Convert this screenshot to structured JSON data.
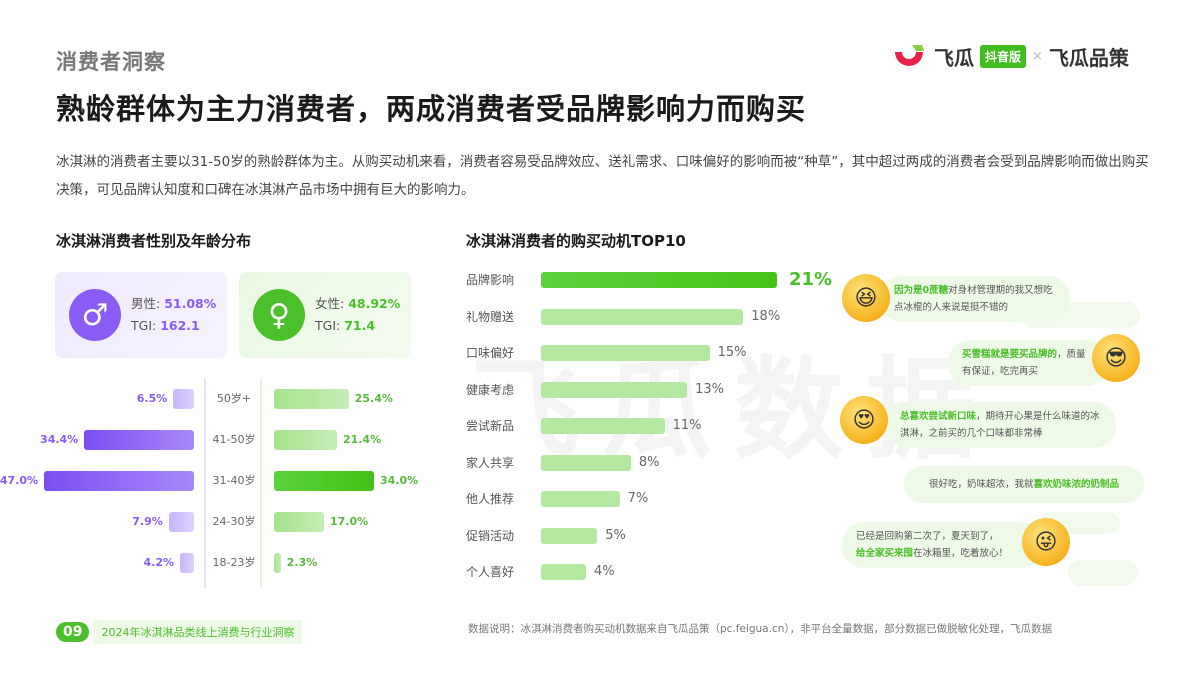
{
  "header": {
    "section_label": "消费者洞察",
    "main_title": "熟龄群体为主力消费者，两成消费者受品牌影响力而购买",
    "logo": {
      "brand": "飞瓜",
      "badge": "抖音版",
      "separator": "×",
      "partner": "飞瓜品策"
    }
  },
  "description": "冰淇淋的消费者主要以31-50岁的熟龄群体为主。从购买动机来看，消费者容易受品牌效应、送礼需求、口味偏好的影响而被“种草”，其中超过两成的消费者会受到品牌影响而做出购买决策，可见品牌认知度和口碑在冰淇淋产品市场中拥有巨大的影响力。",
  "gender_section": {
    "title": "冰淇淋消费者性别及年龄分布",
    "male": {
      "label": "男性:",
      "value": "51.08%",
      "tgi_label": "TGI:",
      "tgi": "162.1",
      "icon": "male-symbol-icon"
    },
    "female": {
      "label": "女性:",
      "value": "48.92%",
      "tgi_label": "TGI:",
      "tgi": "71.4",
      "icon": "female-symbol-icon"
    }
  },
  "motive_section": {
    "title": "冰淇淋消费者的购买动机TOP10"
  },
  "watermark": "飞瓜数据",
  "comments": [
    {
      "highlight": "因为是0蔗糖",
      "text": "对身材管理期的我又想吃点冰棍的人来说是挺不错的",
      "emoji": "laughing-emoji-icon"
    },
    {
      "highlight": "买雪糕就是要买品牌的",
      "text": "，质量有保证，吃完再买",
      "emoji": "sunglasses-emoji-icon"
    },
    {
      "highlight": "总喜欢尝试新口味",
      "text": "，期待开心果是什么味道的冰淇淋，之前买的几个口味都非常棒",
      "emoji": "heart-eyes-emoji-icon"
    },
    {
      "prefix": "很好吃，奶味超浓，我就",
      "highlight": "喜欢奶味浓的奶制品"
    },
    {
      "prefix": "已经是回购第二次了，夏天到了，",
      "highlight": "给全家买来囤",
      "text": "在冰箱里，吃着放心！",
      "emoji": "winking-tongue-emoji-icon"
    }
  ],
  "footer": {
    "page_number": "09",
    "report_title": "2024年冰淇淋品类线上消费与行业洞察",
    "note": "数据说明：冰淇淋消费者购买动机数据来自飞瓜品策（pc.feigua.cn），非平台全量数据，部分数据已做脱敏化处理，飞瓜数据"
  },
  "colors": {
    "male": "#8a5cf5",
    "female": "#4cc02a",
    "bar_light_green": "#b3e8a0"
  },
  "chart_data": [
    {
      "type": "bar",
      "title": "冰淇淋消费者性别及年龄分布",
      "orientation": "horizontal-butterfly",
      "categories": [
        "50岁+",
        "41-50岁",
        "31-40岁",
        "24-30岁",
        "18-23岁"
      ],
      "series": [
        {
          "name": "男性",
          "values": [
            6.5,
            34.4,
            47.0,
            7.9,
            4.2
          ],
          "labels": [
            "6.5%",
            "34.4%",
            "47.0%",
            "7.9%",
            "4.2%"
          ]
        },
        {
          "name": "女性",
          "values": [
            25.4,
            21.4,
            34.0,
            17.0,
            2.3
          ],
          "labels": [
            "25.4%",
            "21.4%",
            "34.0%",
            "17.0%",
            "2.3%"
          ]
        }
      ],
      "gender_share": {
        "男性": 51.08,
        "女性": 48.92
      },
      "tgi": {
        "男性": 162.1,
        "女性": 71.4
      }
    },
    {
      "type": "bar",
      "title": "冰淇淋消费者的购买动机TOP10",
      "orientation": "horizontal",
      "categories": [
        "品牌影响",
        "礼物赠送",
        "口味偏好",
        "健康考虑",
        "尝试新品",
        "家人共享",
        "他人推荐",
        "促销活动",
        "个人喜好"
      ],
      "values": [
        21,
        18,
        15,
        13,
        11,
        8,
        7,
        5,
        4
      ],
      "labels": [
        "21%",
        "18%",
        "15%",
        "13%",
        "11%",
        "8%",
        "7%",
        "5%",
        "4%"
      ],
      "xlabel": "",
      "ylabel": "",
      "unit": "%"
    }
  ]
}
